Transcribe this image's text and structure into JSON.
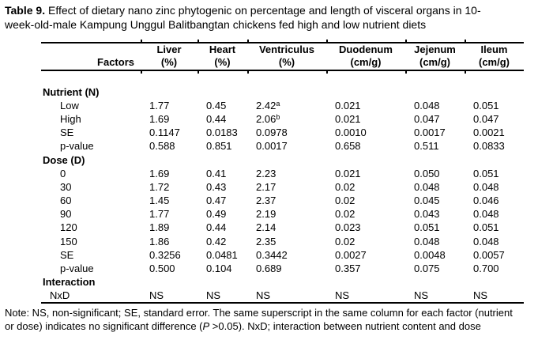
{
  "caption": {
    "label": "Table 9.",
    "line1": "Effect of dietary nano zinc phytogenic on percentage and length of visceral organs in 10-",
    "line2": "week-old-male Kampung Unggul Balitbangtan chickens fed high and low nutrient diets"
  },
  "table": {
    "factors_header": "Factors",
    "columns": [
      {
        "name": "Liver",
        "unit": "(%)"
      },
      {
        "name": "Heart",
        "unit": "(%)"
      },
      {
        "name": "Ventriculus",
        "unit": "(%)"
      },
      {
        "name": "Duodenum",
        "unit": "(cm/g)"
      },
      {
        "name": "Jejenum",
        "unit": "(cm/g)"
      },
      {
        "name": "Ileum",
        "unit": "(cm/g)"
      }
    ],
    "sections": [
      {
        "header": "Nutrient (N)",
        "rows": [
          {
            "label": "Low",
            "values": [
              "1.77",
              "0.45",
              {
                "v": "2.42",
                "sup": "a"
              },
              "0.021",
              "0.048",
              "0.051"
            ]
          },
          {
            "label": "High",
            "values": [
              "1.69",
              "0.44",
              {
                "v": "2.06",
                "sup": "b"
              },
              "0.021",
              "0.047",
              "0.047"
            ]
          },
          {
            "label": "SE",
            "values": [
              "0.1147",
              "0.0183",
              "0.0978",
              "0.0010",
              "0.0017",
              "0.0021"
            ]
          },
          {
            "label": "p-value",
            "values": [
              "0.588",
              "0.851",
              "0.0017",
              "0.658",
              "0.511",
              "0.0833"
            ]
          }
        ]
      },
      {
        "header": "Dose (D)",
        "rows": [
          {
            "label": "0",
            "values": [
              "1.69",
              "0.41",
              "2.23",
              "0.021",
              "0.050",
              "0.051"
            ]
          },
          {
            "label": "30",
            "values": [
              "1.72",
              "0.43",
              "2.17",
              "0.02",
              "0.048",
              "0.048"
            ]
          },
          {
            "label": "60",
            "values": [
              "1.45",
              "0.47",
              "2.37",
              "0.02",
              "0.045",
              "0.046"
            ]
          },
          {
            "label": "90",
            "values": [
              "1.77",
              "0.49",
              "2.19",
              "0.02",
              "0.043",
              "0.048"
            ]
          },
          {
            "label": "120",
            "values": [
              "1.89",
              "0.44",
              "2.14",
              "0.023",
              "0.051",
              "0.051"
            ]
          },
          {
            "label": "150",
            "values": [
              "1.86",
              "0.42",
              "2.35",
              "0.02",
              "0.048",
              "0.048"
            ]
          },
          {
            "label": "SE",
            "values": [
              "0.3256",
              "0.0481",
              "0.3442",
              "0.0027",
              "0.0048",
              "0.0057"
            ]
          },
          {
            "label": "p-value",
            "values": [
              "0.500",
              "0.104",
              "0.689",
              "0.357",
              "0.075",
              "0.700"
            ]
          }
        ]
      },
      {
        "header": "Interaction",
        "rows": [
          {
            "label": "NxD",
            "indent": "small",
            "values": [
              "NS",
              "NS",
              "NS",
              "NS",
              "NS",
              "NS"
            ]
          }
        ]
      }
    ]
  },
  "note": {
    "line1": "Note: NS, non-significant; SE, standard error. The same superscript in the same column for each factor (nutrient",
    "line2_pre": "or dose) indicates no significant difference (",
    "line2_italic": "P",
    "line2_post": " >0.05). NxD; interaction between nutrient content and dose"
  }
}
